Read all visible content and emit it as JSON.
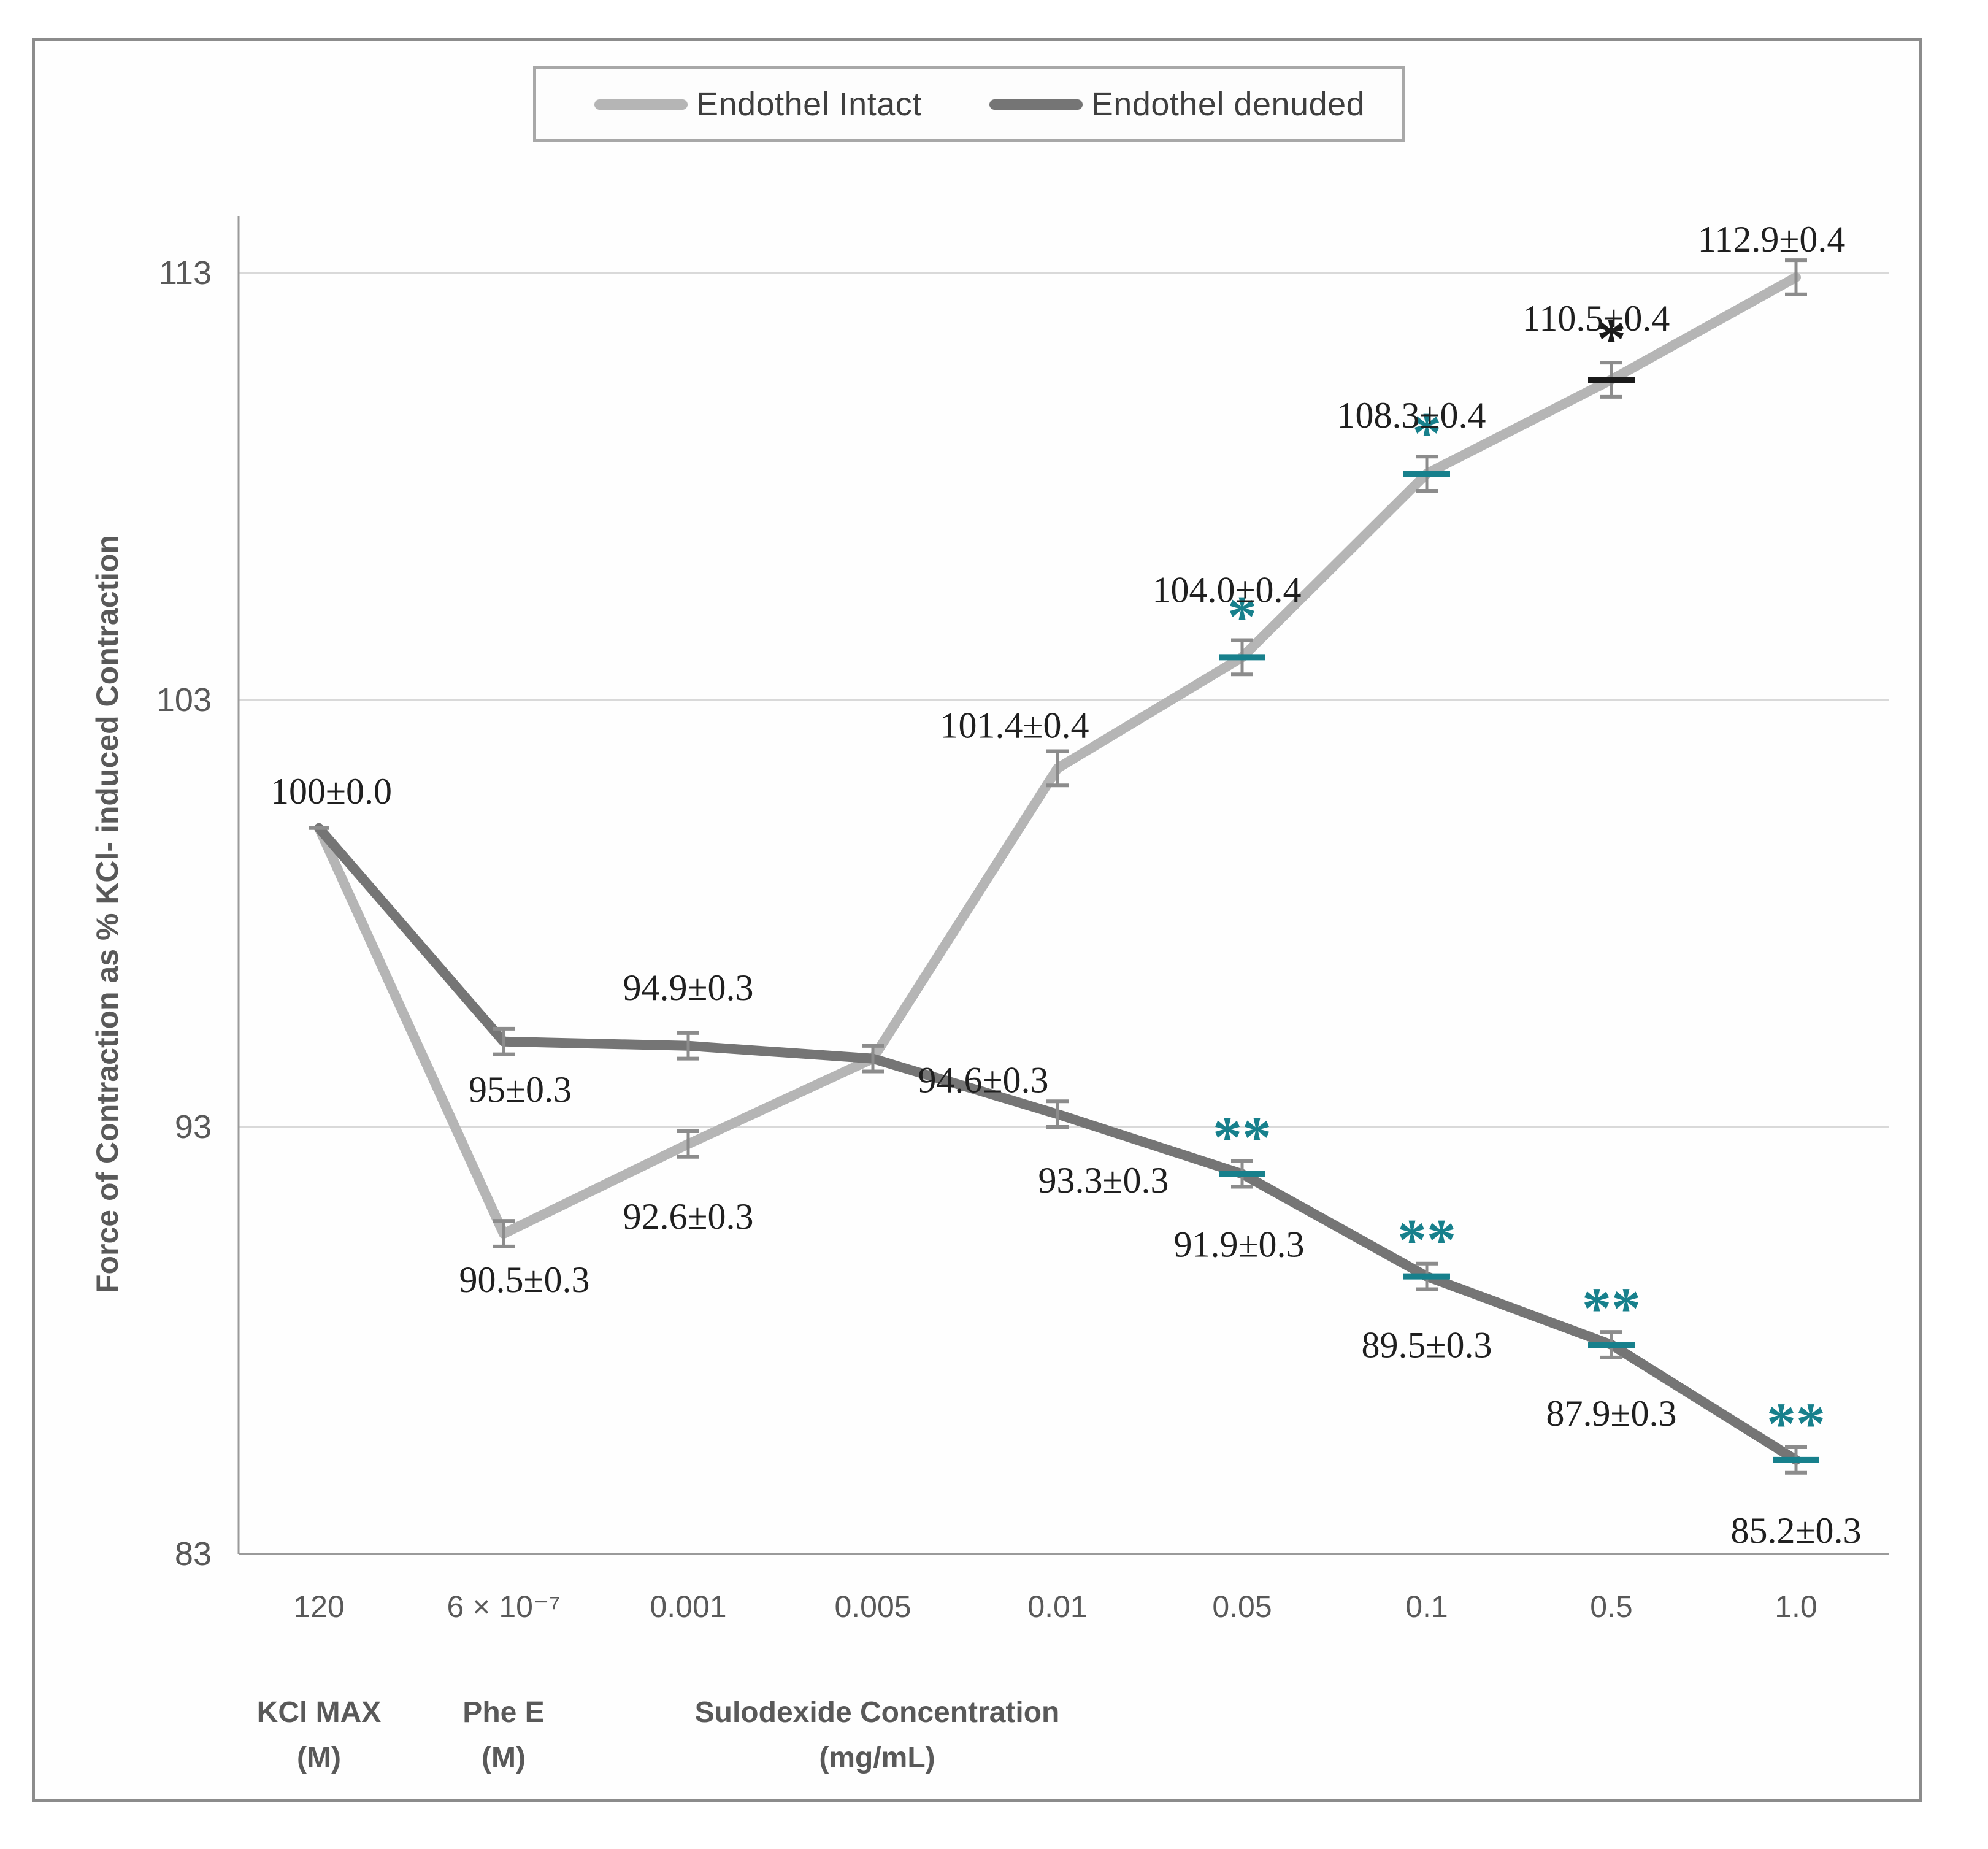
{
  "figure": {
    "background": "#ffffff",
    "border_color": "#8c8c8c"
  },
  "legend": {
    "items": [
      {
        "label": "Endothel Intact",
        "color": "#b5b5b5"
      },
      {
        "label": "Endothel denuded",
        "color": "#757575"
      }
    ]
  },
  "axes": {
    "y_title": "Force of Contraction as % KCl- induced Contraction",
    "y_ticks": [
      "113",
      "103",
      "93",
      "83"
    ],
    "x_ticks": [
      "120",
      "6 × 10⁻⁷",
      "0.001",
      "0.005",
      "0.01",
      "0.05",
      "0.1",
      "0.5",
      "1.0"
    ],
    "x_group_labels": [
      {
        "line1": "KCl MAX",
        "line2": "(M)"
      },
      {
        "line1": "Phe E",
        "line2": "(M)"
      },
      {
        "line1": "Sulodexide Concentration",
        "line2": "(mg/mL)"
      }
    ]
  },
  "chart_data": {
    "type": "line",
    "title": "",
    "xlabel": "Sulodexide Concentration (mg/mL); first two categories are KCl MAX (M) and Phe E (M)",
    "ylabel": "Force of Contraction as % KCl- induced Contraction",
    "categories": [
      "120",
      "6 × 10⁻⁷",
      "0.001",
      "0.005",
      "0.01",
      "0.05",
      "0.1",
      "0.5",
      "1.0"
    ],
    "ylim": [
      83,
      113
    ],
    "yticks": [
      113,
      103,
      93,
      83
    ],
    "grid": true,
    "legend_position": "top",
    "grid_color": "#d9d9d9",
    "axis_color": "#9a9a9a",
    "tick_text_color": "#595959",
    "label_text_color": "#1f1f1f",
    "error_bar_color": "#8c8c8c",
    "series": [
      {
        "name": "Endothel Intact",
        "color": "#b5b5b5",
        "values": [
          100,
          90.5,
          92.6,
          94.6,
          101.4,
          104.0,
          108.3,
          110.5,
          112.9
        ],
        "errors": [
          0.0,
          0.3,
          0.3,
          0.3,
          0.4,
          0.4,
          0.4,
          0.4,
          0.4
        ],
        "point_labels": [
          "100±0.0",
          "90.5±0.3",
          "92.6±0.3",
          "94.6±0.3",
          "101.4±0.4",
          "104.0±0.4",
          "108.3±0.4",
          "110.5±0.4",
          "112.9±0.4"
        ],
        "significance": [
          "",
          "",
          "",
          "",
          "",
          "*",
          "*",
          "*",
          ""
        ],
        "significance_colors": [
          "",
          "",
          "",
          "",
          "",
          "#17808c",
          "#17808c",
          "#1a1a1a",
          ""
        ]
      },
      {
        "name": "Endothel denuded",
        "color": "#757575",
        "values": [
          100,
          95,
          94.9,
          94.6,
          93.3,
          91.9,
          89.5,
          87.9,
          85.2
        ],
        "errors": [
          0.0,
          0.3,
          0.3,
          0.3,
          0.3,
          0.3,
          0.3,
          0.3,
          0.3
        ],
        "point_labels": [
          "",
          "95±0.3",
          "94.9±0.3",
          "",
          "93.3±0.3",
          "91.9±0.3",
          "89.5±0.3",
          "87.9±0.3",
          "85.2±0.3"
        ],
        "significance": [
          "",
          "",
          "",
          "",
          "",
          "**",
          "**",
          "**",
          "**"
        ],
        "significance_colors": [
          "",
          "",
          "",
          "",
          "",
          "#17808c",
          "#17808c",
          "#17808c",
          "#17808c"
        ]
      }
    ]
  }
}
